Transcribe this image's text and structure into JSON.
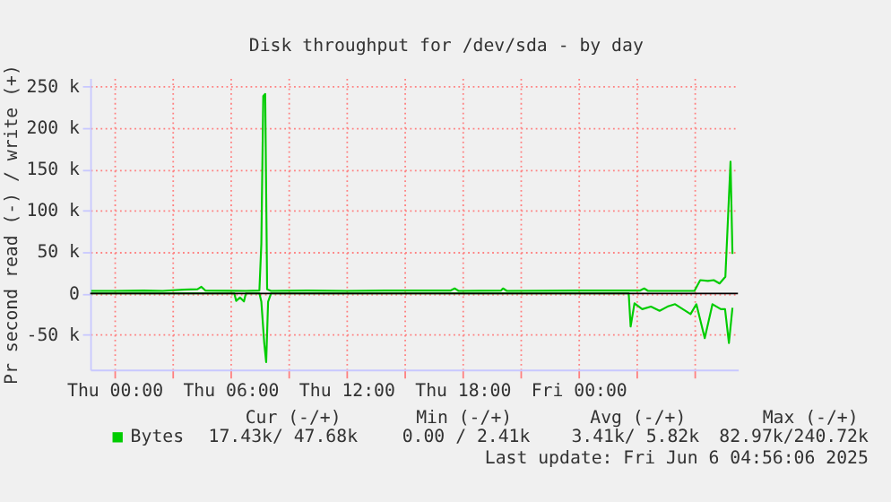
{
  "chart_data": {
    "type": "line",
    "title": "Disk throughput for /dev/sda - by day",
    "ylabel": "Pr second read (-) / write (+)",
    "series": [
      {
        "name": "Bytes",
        "color": "#00cc00",
        "x": [
          "2025-06-04T22:48",
          "2025-06-05T00:00",
          "2025-06-05T01:30",
          "2025-06-05T02:30",
          "2025-06-05T03:36",
          "2025-06-05T04:18",
          "2025-06-05T04:30",
          "2025-06-05T04:42",
          "2025-06-05T06:48",
          "2025-06-05T07:30",
          "2025-06-05T07:36",
          "2025-06-05T07:42",
          "2025-06-05T07:48",
          "2025-06-05T07:54",
          "2025-06-05T08:06",
          "2025-06-05T10:00",
          "2025-06-05T12:00",
          "2025-06-05T14:00",
          "2025-06-05T17:24",
          "2025-06-05T17:36",
          "2025-06-05T17:48",
          "2025-06-05T20:00",
          "2025-06-05T20:06",
          "2025-06-05T20:18",
          "2025-06-06T00:00",
          "2025-06-06T03:12",
          "2025-06-06T03:24",
          "2025-06-06T03:36",
          "2025-06-06T06:00",
          "2025-06-06T06:18",
          "2025-06-06T06:42",
          "2025-06-06T07:00",
          "2025-06-06T07:18",
          "2025-06-06T07:36",
          "2025-06-06T07:52",
          "2025-06-06T07:58"
        ],
        "values": [
          3000,
          3000,
          3500,
          3000,
          4500,
          5000,
          8000,
          3500,
          3000,
          3500,
          60000,
          238000,
          240720,
          5000,
          3000,
          3500,
          3000,
          3500,
          3500,
          6000,
          3000,
          3500,
          6000,
          3000,
          3500,
          3500,
          6000,
          3000,
          3000,
          16000,
          15000,
          16000,
          12000,
          20000,
          159000,
          47680
        ]
      },
      {
        "color": "#00cc00",
        "x": [
          "2025-06-04T22:48",
          "2025-06-05T06:12",
          "2025-06-05T06:18",
          "2025-06-05T06:30",
          "2025-06-05T06:42",
          "2025-06-05T06:48",
          "2025-06-05T07:30",
          "2025-06-05T07:36",
          "2025-06-05T07:45",
          "2025-06-05T07:51",
          "2025-06-05T07:57",
          "2025-06-05T08:06",
          "2025-06-06T02:36",
          "2025-06-06T02:42",
          "2025-06-06T02:54",
          "2025-06-06T03:18",
          "2025-06-06T03:45",
          "2025-06-06T04:12",
          "2025-06-06T04:36",
          "2025-06-06T05:00",
          "2025-06-06T05:24",
          "2025-06-06T05:48",
          "2025-06-06T06:06",
          "2025-06-06T06:32",
          "2025-06-06T06:56",
          "2025-06-06T07:22",
          "2025-06-06T07:35",
          "2025-06-06T07:47",
          "2025-06-06T07:58"
        ],
        "values": [
          0,
          0,
          -9000,
          -5000,
          -9700,
          0,
          0,
          -10000,
          -60000,
          -82970,
          -10000,
          0,
          0,
          -40000,
          -12000,
          -19000,
          -16000,
          -21000,
          -16000,
          -13000,
          -19000,
          -25000,
          -13000,
          -54000,
          -13000,
          -19000,
          -19000,
          -60000,
          -17430
        ]
      }
    ],
    "xlim": [
      "2025-06-04T22:45",
      "2025-06-06T08:15"
    ],
    "xticks": [
      {
        "value": "2025-06-05T00:00",
        "label": "Thu 00:00"
      },
      {
        "value": "2025-06-05T03:00",
        "label": null
      },
      {
        "value": "2025-06-05T06:00",
        "label": "Thu 06:00"
      },
      {
        "value": "2025-06-05T09:00",
        "label": null
      },
      {
        "value": "2025-06-05T12:00",
        "label": "Thu 12:00"
      },
      {
        "value": "2025-06-05T15:00",
        "label": null
      },
      {
        "value": "2025-06-05T18:00",
        "label": "Thu 18:00"
      },
      {
        "value": "2025-06-05T21:00",
        "label": null
      },
      {
        "value": "2025-06-06T00:00",
        "label": "Fri 00:00"
      },
      {
        "value": "2025-06-06T03:00",
        "label": null
      },
      {
        "value": "2025-06-06T06:00",
        "label": null
      }
    ],
    "ylim": [
      -92000,
      260000
    ],
    "yticks": [
      {
        "value": -50000,
        "label": "-50 k"
      },
      0,
      {
        "value": 50000,
        "label": "50 k"
      },
      {
        "value": 100000,
        "label": "100 k"
      },
      {
        "value": 150000,
        "label": "150 k"
      },
      {
        "value": 200000,
        "label": "200 k"
      },
      {
        "value": 250000,
        "label": "250 k"
      }
    ],
    "ref_lines": [
      {
        "axis": "y",
        "value": 0,
        "color": "#000000"
      }
    ],
    "grid": true,
    "legend": "bottom",
    "annotations": [
      "Cur (-/+)",
      "Min (-/+)",
      "Avg (-/+)",
      "Max (-/+)",
      "17.43k/ 47.68k",
      "0.00 /  2.41k",
      "3.41k/  5.82k",
      "82.97k/240.72k",
      "Last update: Fri Jun  6 04:56:06 2025"
    ]
  }
}
